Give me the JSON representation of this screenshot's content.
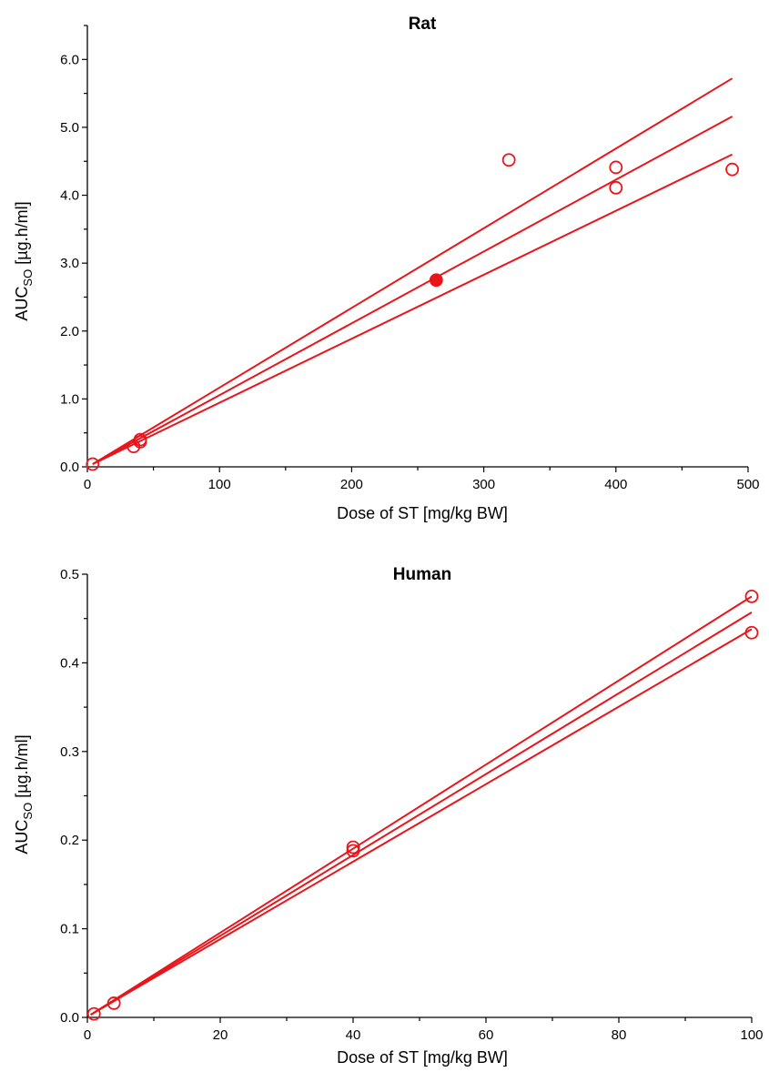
{
  "chart_data": [
    {
      "type": "scatter",
      "title": "Rat",
      "xlabel": "Dose of ST [mg/kg BW]",
      "ylabel": {
        "main": "AUC",
        "subscript": "SO",
        "unit": " [µg.h/ml]"
      },
      "xlim": [
        0,
        500
      ],
      "ylim": [
        0,
        6.5
      ],
      "xticks": [
        0,
        100,
        200,
        300,
        400,
        500
      ],
      "xtick_labels": [
        "0",
        "100",
        "200",
        "300",
        "400",
        "500"
      ],
      "yticks": [
        0,
        1,
        2,
        3,
        4,
        5,
        6
      ],
      "ytick_labels": [
        "0.0",
        "1.0",
        "2.0",
        "3.0",
        "4.0",
        "5.0",
        "6.0"
      ],
      "grid": false,
      "color": "#e8151b",
      "series": [
        {
          "kind": "points",
          "marker": "open-circle",
          "x": [
            4,
            35,
            40,
            40,
            319,
            400,
            400,
            488
          ],
          "y": [
            0.04,
            0.3,
            0.37,
            0.4,
            4.52,
            4.41,
            4.11,
            4.38
          ]
        },
        {
          "kind": "points",
          "marker": "filled-circle",
          "x": [
            264
          ],
          "y": [
            2.75
          ]
        },
        {
          "kind": "line",
          "x": [
            4,
            488
          ],
          "y": [
            0.04,
            5.72
          ]
        },
        {
          "kind": "line",
          "x": [
            4,
            488
          ],
          "y": [
            0.04,
            5.16
          ]
        },
        {
          "kind": "line",
          "x": [
            4,
            488
          ],
          "y": [
            0.04,
            4.6
          ]
        }
      ]
    },
    {
      "type": "scatter",
      "title": "Human",
      "xlabel": "Dose of ST [mg/kg BW]",
      "ylabel": {
        "main": "AUC",
        "subscript": "SO",
        "unit": " [µg.h/ml]"
      },
      "xlim": [
        0,
        100
      ],
      "ylim": [
        0,
        0.5
      ],
      "xticks": [
        0,
        20,
        40,
        60,
        80,
        100
      ],
      "xtick_labels": [
        "0",
        "20",
        "40",
        "60",
        "80",
        "100"
      ],
      "yticks": [
        0,
        0.1,
        0.2,
        0.3,
        0.4,
        0.5
      ],
      "ytick_labels": [
        "0.0",
        "0.1",
        "0.2",
        "0.3",
        "0.4",
        "0.5"
      ],
      "grid": false,
      "color": "#e8151b",
      "series": [
        {
          "kind": "points",
          "marker": "open-circle",
          "x": [
            1,
            4,
            40,
            40,
            100,
            100
          ],
          "y": [
            0.004,
            0.016,
            0.192,
            0.188,
            0.475,
            0.434
          ]
        },
        {
          "kind": "line",
          "x": [
            0.5,
            100
          ],
          "y": [
            0.003,
            0.475
          ]
        },
        {
          "kind": "line",
          "x": [
            0.5,
            100
          ],
          "y": [
            0.003,
            0.457
          ]
        },
        {
          "kind": "line",
          "x": [
            0.5,
            100
          ],
          "y": [
            0.003,
            0.438
          ]
        }
      ]
    }
  ]
}
